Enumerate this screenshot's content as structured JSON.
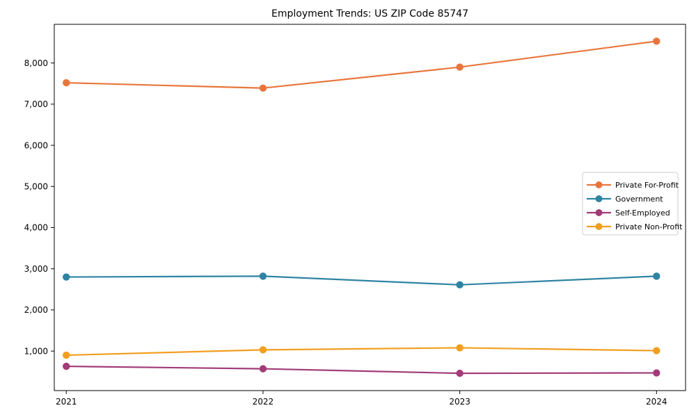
{
  "chart_data": {
    "type": "line",
    "title": "Employment Trends: US ZIP Code 85747",
    "categories": [
      "2021",
      "2022",
      "2023",
      "2024"
    ],
    "series": [
      {
        "name": "Private For-Profit",
        "color": "#E8763C",
        "values": [
          7520,
          7390,
          7900,
          8530
        ]
      },
      {
        "name": "Government",
        "color": "#2E84A3",
        "values": [
          2800,
          2820,
          2610,
          2820
        ]
      },
      {
        "name": "Self-Employed",
        "color": "#A23B78",
        "values": [
          630,
          570,
          460,
          470
        ]
      },
      {
        "name": "Private Non-Profit",
        "color": "#F29E1F",
        "values": [
          900,
          1030,
          1080,
          1010
        ]
      }
    ],
    "xlabel": "",
    "ylabel": "",
    "ylim": [
      40,
      8940
    ],
    "yticks": [
      1000,
      2000,
      3000,
      4000,
      5000,
      6000,
      7000,
      8000
    ],
    "ytick_labels": [
      "1,000",
      "2,000",
      "3,000",
      "4,000",
      "5,000",
      "6,000",
      "7,000",
      "8,000"
    ],
    "grid": false,
    "legend_position": "center-right",
    "marker": "circle",
    "axis_color": "#000000",
    "legend_border_color": "#cccccc",
    "legend_bg_color": "#ffffff"
  }
}
